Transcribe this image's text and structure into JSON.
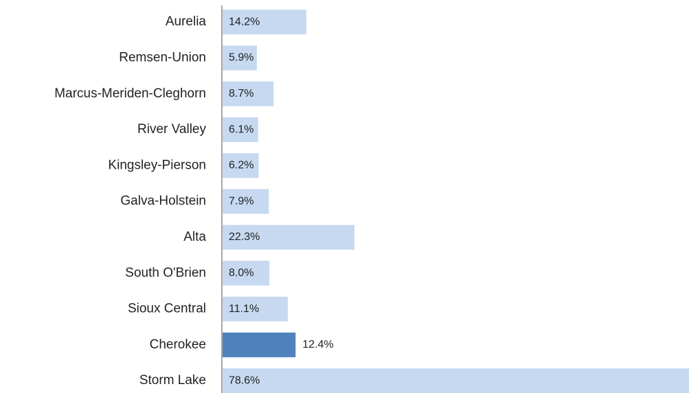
{
  "chart_data": {
    "type": "hbar",
    "categories": [
      "Aurelia",
      "Remsen-Union",
      "Marcus-Meriden-Cleghorn",
      "River Valley",
      "Kingsley-Pierson",
      "Galva-Holstein",
      "Alta",
      "South O'Brien",
      "Sioux Central",
      "Cherokee",
      "Storm Lake"
    ],
    "values": [
      14.2,
      5.9,
      8.7,
      6.1,
      6.2,
      7.9,
      22.3,
      8.0,
      11.1,
      12.4,
      78.6
    ],
    "value_labels": [
      "14.2%",
      "5.9%",
      "8.7%",
      "6.1%",
      "6.2%",
      "7.9%",
      "22.3%",
      "8.0%",
      "11.1%",
      "12.4%",
      "78.6%"
    ],
    "colors": [
      "#c6d9f1",
      "#c6d9f1",
      "#c6d9f1",
      "#c6d9f1",
      "#c6d9f1",
      "#c6d9f1",
      "#c6d9f1",
      "#c6d9f1",
      "#c6d9f1",
      "#4f81bd",
      "#c6d9f1"
    ]
  }
}
